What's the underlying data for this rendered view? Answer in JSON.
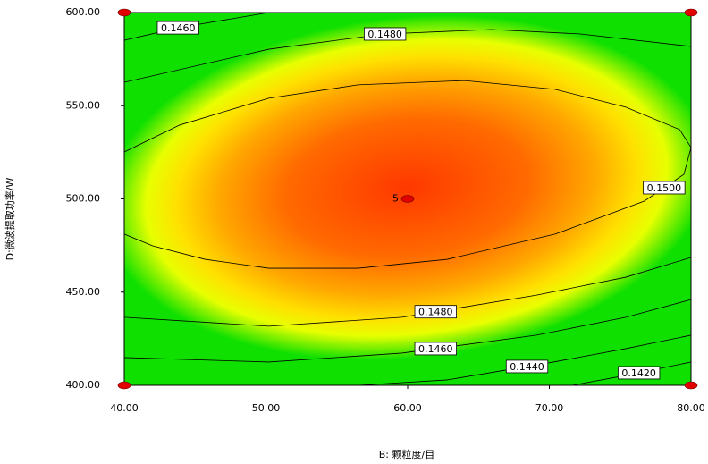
{
  "chart_data": {
    "type": "contour",
    "xlabel": "B: 颗粒度/目",
    "ylabel": "D:微波提取功率/W",
    "xlim": [
      40,
      80
    ],
    "ylim": [
      400,
      600
    ],
    "xticks": [
      {
        "value": 40,
        "label": "40.00"
      },
      {
        "value": 50,
        "label": "50.00"
      },
      {
        "value": 60,
        "label": "60.00"
      },
      {
        "value": 70,
        "label": "70.00"
      },
      {
        "value": 80,
        "label": "80.00"
      }
    ],
    "yticks": [
      {
        "value": 400,
        "label": "400.00"
      },
      {
        "value": 450,
        "label": "450.00"
      },
      {
        "value": 500,
        "label": "500.00"
      },
      {
        "value": 550,
        "label": "550.00"
      },
      {
        "value": 600,
        "label": "600.00"
      }
    ],
    "contours": [
      {
        "level": 0.146,
        "label": "0.1460",
        "x": [
          40,
          43.8,
          50.2
        ],
        "y": [
          585.1,
          591.8,
          600
        ]
      },
      {
        "level": 0.148,
        "label": "0.1480",
        "x": [
          40,
          50.2,
          58.4,
          65.9,
          72.2,
          80
        ],
        "y": [
          562.6,
          580.3,
          588.5,
          590.9,
          588.5,
          581.8
        ]
      },
      {
        "level": 0.15,
        "label": "0.1500",
        "x": [
          40,
          43.9,
          50.2,
          56.5,
          64.0,
          70.4,
          75.4,
          79.2,
          80,
          79.5,
          76.7,
          70.4,
          62.8,
          56.5,
          50.2,
          45.7,
          42.0,
          40
        ],
        "y": [
          525.2,
          539.6,
          554.0,
          561.2,
          563.5,
          558.8,
          549.2,
          537.2,
          527.6,
          513.2,
          498.8,
          481.1,
          467.6,
          462.8,
          462.8,
          467.6,
          474.8,
          481.1
        ]
      },
      {
        "level": 0.148,
        "label": "0.1480",
        "x": [
          40,
          50.2,
          59.6,
          69.1,
          75.4,
          80
        ],
        "y": [
          436.5,
          431.7,
          436.5,
          448.4,
          458.0,
          468.6
        ]
      },
      {
        "level": 0.146,
        "label": "0.1460",
        "x": [
          40,
          50.2,
          59.6,
          69.1,
          75.4,
          80
        ],
        "y": [
          414.9,
          412.5,
          417.3,
          426.9,
          436.5,
          446.0
        ]
      },
      {
        "level": 0.144,
        "label": "0.1440",
        "x": [
          56.5,
          62.8,
          70.3,
          75.4,
          80
        ],
        "y": [
          400,
          402.9,
          412.5,
          419.7,
          426.9
        ]
      },
      {
        "level": 0.142,
        "label": "0.1420",
        "x": [
          71.6,
          75.4,
          80
        ],
        "y": [
          400,
          405.3,
          412.5
        ]
      }
    ],
    "design_points": {
      "x": [
        40,
        40,
        80,
        80
      ],
      "y": [
        600,
        400,
        600,
        400
      ],
      "color": "#e00000"
    },
    "center_point": {
      "x": 60,
      "y": 500,
      "replicates": 5,
      "color": "#e00000"
    }
  }
}
